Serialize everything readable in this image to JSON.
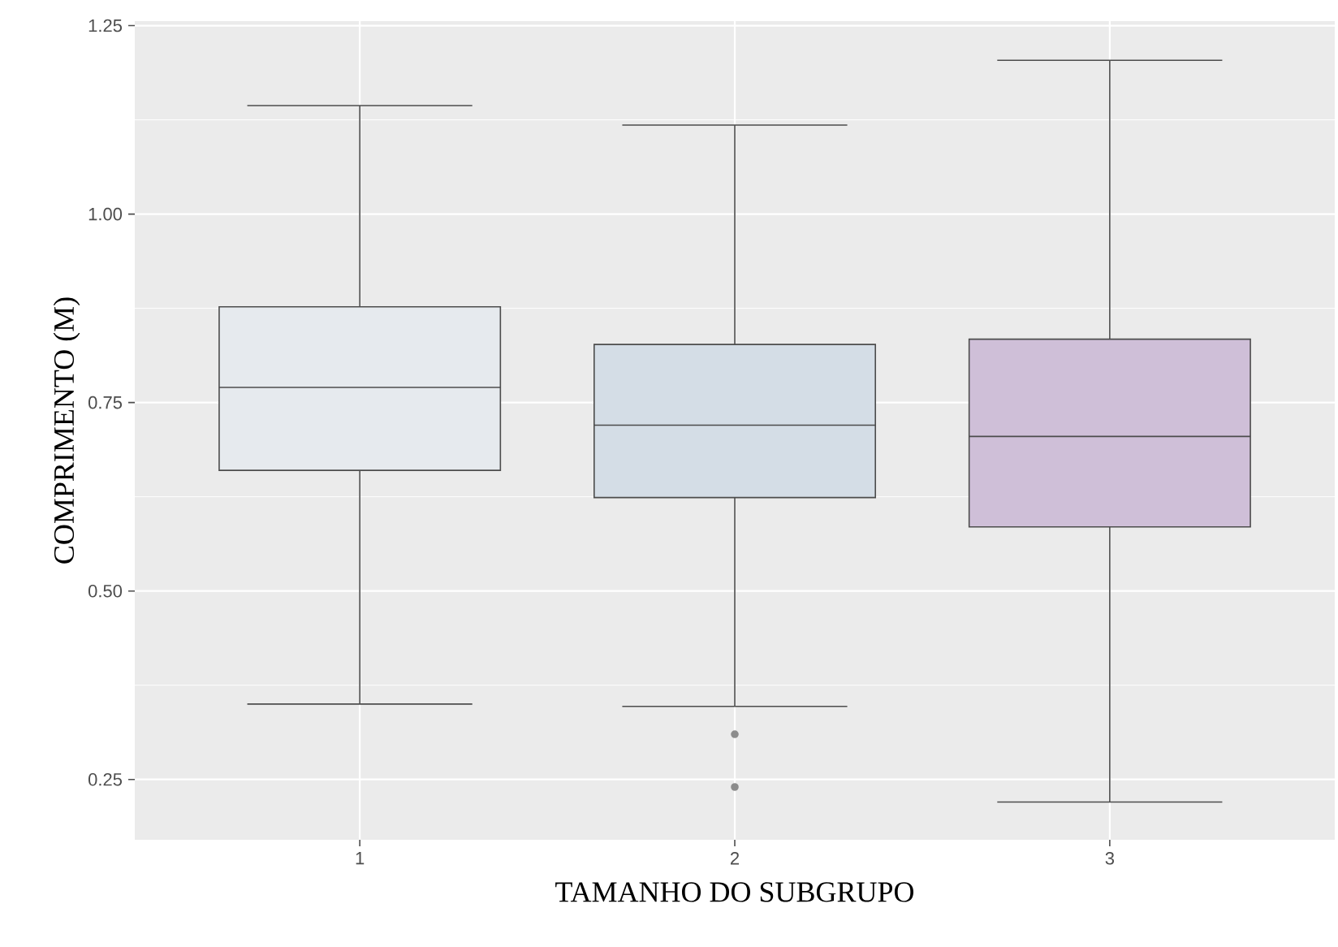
{
  "chart_data": {
    "type": "box",
    "xlabel": "TAMANHO DO SUBGRUPO",
    "ylabel": "COMPRIMENTO (M)",
    "categories": [
      "1",
      "2",
      "3"
    ],
    "boxes": [
      {
        "low": 0.35,
        "q1": 0.66,
        "median": 0.77,
        "q3": 0.877,
        "high": 1.144
      },
      {
        "low": 0.347,
        "q1": 0.624,
        "median": 0.72,
        "q3": 0.827,
        "high": 1.118,
        "outliers": [
          0.31,
          0.24
        ]
      },
      {
        "low": 0.22,
        "q1": 0.585,
        "median": 0.705,
        "q3": 0.834,
        "high": 1.204
      }
    ],
    "colors": [
      "#e6eaee",
      "#d4dde6",
      "#cfbfd8"
    ],
    "ylim": [
      0.17,
      1.256
    ],
    "yticks": [
      {
        "value": 0.25,
        "label": "0.25"
      },
      {
        "value": 0.5,
        "label": "0.50"
      },
      {
        "value": 0.75,
        "label": "0.75"
      },
      {
        "value": 1.0,
        "label": "1.00"
      },
      {
        "value": 1.25,
        "label": "1.25"
      }
    ],
    "grid": true
  }
}
